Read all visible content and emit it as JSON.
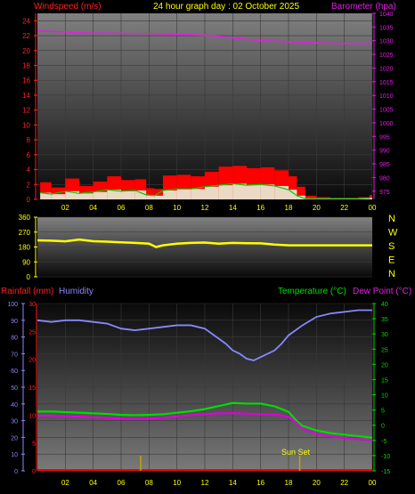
{
  "header": {
    "wind_label": "Windspeed (m/s)",
    "title": "24 hour graph day : 02 October 2025",
    "baro_label": "Barometer (hpa)"
  },
  "lower_labels": {
    "rain": "Rainfall (mm)",
    "humidity": "Humidity",
    "temp": "Temperature (°C)",
    "dew": "Dew Point (°C)"
  },
  "annotation": "Sun Set",
  "colors": {
    "wind": "#ff0000",
    "gust_green": "#00cc00",
    "gust_white": "#e6ffe6",
    "barometer": "#e020e0",
    "direction": "#ffff00",
    "humidity": "#8888ff",
    "temperature": "#00dd00",
    "dewpoint": "#dd00dd",
    "rain": "#ff0000",
    "sun_marker": "#c8a000"
  },
  "chart_data": [
    {
      "type": "area",
      "id": "wind_baro",
      "title": "24 hour graph day : 02 October 2025",
      "xlabel": "",
      "ylabel": "Windspeed (m/s)",
      "ylabel_right": "Barometer (hpa)",
      "x_ticks": [
        "02",
        "04",
        "06",
        "08",
        "10",
        "12",
        "14",
        "16",
        "18",
        "20",
        "22",
        "00"
      ],
      "x_range": [
        0,
        24
      ],
      "ylim": [
        0,
        25
      ],
      "y_ticks": [
        0,
        2,
        4,
        6,
        8,
        10,
        12,
        14,
        16,
        18,
        20,
        22,
        24
      ],
      "y2lim": [
        972,
        1040
      ],
      "y2_ticks": [
        975,
        980,
        985,
        990,
        995,
        1000,
        1005,
        1010,
        1015,
        1020,
        1025,
        1030,
        1035,
        1040
      ],
      "grid": true,
      "series": [
        {
          "name": "Windspeed (m/s)",
          "kind": "bars",
          "x": [
            0.2,
            1,
            2,
            3,
            4,
            5,
            6,
            7,
            7.8,
            8.4,
            9,
            10,
            11,
            12,
            13,
            14,
            15,
            16,
            17,
            18,
            18.6,
            19.2,
            20,
            21,
            22,
            23,
            23.8
          ],
          "values": [
            2.3,
            1.6,
            2.8,
            1.8,
            2.4,
            3.1,
            2.6,
            2.7,
            1.5,
            1.4,
            3.2,
            3.3,
            3.1,
            3.7,
            4.4,
            4.5,
            4.2,
            4.3,
            3.9,
            3.1,
            1.7,
            0.5,
            0.3,
            0.2,
            0.2,
            0.3,
            0.6
          ]
        },
        {
          "name": "Gust",
          "kind": "line",
          "x": [
            0.2,
            1,
            2,
            3,
            4,
            5,
            6,
            7,
            7.8,
            8.4,
            9,
            10,
            11,
            12,
            13,
            14,
            15,
            16,
            17,
            18,
            18.6,
            19.2,
            20,
            21,
            22,
            23,
            23.8
          ],
          "values": [
            0.9,
            0.7,
            1.1,
            0.8,
            1.0,
            1.3,
            1.1,
            1.2,
            0.6,
            0.5,
            1.2,
            1.4,
            1.4,
            1.7,
            1.9,
            2.1,
            1.9,
            2.0,
            1.8,
            1.3,
            0.5,
            0.1,
            0.1,
            0.1,
            0.1,
            0.1,
            0.2
          ]
        },
        {
          "name": "Barometer (hpa)",
          "kind": "line",
          "axis": "right",
          "x": [
            0,
            1,
            2,
            3,
            4,
            5,
            6,
            7,
            8,
            9,
            10,
            11,
            12,
            13,
            14,
            15,
            16,
            17,
            18,
            19,
            20,
            21,
            22,
            23,
            24
          ],
          "values": [
            1033.6,
            1033.4,
            1033.2,
            1032.9,
            1032.8,
            1032.8,
            1032.7,
            1032.6,
            1032.6,
            1032.5,
            1032.3,
            1032.2,
            1032.0,
            1031.6,
            1031.0,
            1030.5,
            1030.1,
            1029.8,
            1029.6,
            1029.4,
            1029.2,
            1029.1,
            1029.0,
            1029.0,
            1029.0
          ]
        }
      ]
    },
    {
      "type": "line",
      "id": "wind_direction",
      "title": "",
      "xlabel": "",
      "ylabel": "",
      "ylim": [
        0,
        360
      ],
      "y_ticks": [
        0,
        90,
        180,
        270,
        360
      ],
      "right_labels": [
        "N",
        "W",
        "S",
        "E",
        "N"
      ],
      "x_range": [
        0,
        24
      ],
      "grid": true,
      "series": [
        {
          "name": "",
          "x": [
            0,
            1,
            2,
            3,
            4,
            5,
            6,
            7,
            8,
            8.5,
            9,
            10,
            11,
            12,
            13,
            14,
            15,
            16,
            17,
            18,
            18.5,
            19,
            20,
            21,
            22,
            23,
            24
          ],
          "values": [
            220,
            218,
            214,
            225,
            215,
            212,
            208,
            205,
            200,
            180,
            190,
            200,
            205,
            207,
            200,
            205,
            203,
            202,
            195,
            190,
            190,
            190,
            190,
            190,
            190,
            190,
            190
          ]
        }
      ]
    },
    {
      "type": "line",
      "id": "temp_hum_rain",
      "title": "",
      "xlabel": "",
      "ylabel": "Humidity",
      "x_ticks": [
        "02",
        "04",
        "06",
        "08",
        "10",
        "12",
        "14",
        "16",
        "18",
        "20",
        "22",
        "00"
      ],
      "x_range": [
        0,
        24
      ],
      "ylim": [
        0,
        100
      ],
      "y_ticks": [
        0,
        10,
        20,
        30,
        40,
        50,
        60,
        70,
        80,
        90,
        100
      ],
      "rain_ticks": [
        0,
        5,
        10,
        15,
        20,
        25,
        30
      ],
      "rain_lim": [
        0,
        30
      ],
      "y2lim": [
        -15,
        40
      ],
      "y2_ticks": [
        -15,
        -10,
        -5,
        0,
        5,
        10,
        15,
        20,
        25,
        30,
        35,
        40
      ],
      "grid": true,
      "series": [
        {
          "name": "Humidity",
          "x": [
            0,
            1,
            2,
            3,
            4,
            5,
            6,
            7,
            8,
            9,
            10,
            11,
            12,
            12.5,
            13,
            13.5,
            14,
            14.5,
            15,
            15.5,
            16,
            16.5,
            17,
            17.5,
            18,
            19,
            20,
            21,
            22,
            23,
            24
          ],
          "values": [
            90,
            89,
            90,
            90,
            89,
            88,
            85,
            84,
            85,
            86,
            87,
            87,
            85,
            82,
            79,
            76,
            72,
            70,
            67,
            66,
            68,
            70,
            72,
            76,
            81,
            87,
            92,
            94,
            95,
            96,
            96
          ]
        },
        {
          "name": "Temperature (°C)",
          "axis": "right",
          "x": [
            0,
            1,
            2,
            3,
            4,
            5,
            6,
            7,
            8,
            9,
            10,
            11,
            12,
            13,
            14,
            15,
            16,
            17,
            18,
            18.5,
            19,
            20,
            21,
            22,
            23,
            24
          ],
          "values": [
            4.5,
            4.5,
            4.3,
            4.1,
            3.9,
            3.7,
            3.4,
            3.3,
            3.4,
            3.6,
            4.1,
            4.6,
            5.3,
            6.3,
            7.3,
            7.1,
            7.1,
            6.2,
            4.4,
            1.8,
            -0.2,
            -1.7,
            -2.6,
            -3.1,
            -3.6,
            -4.1
          ]
        },
        {
          "name": "Dew Point (°C)",
          "axis": "right",
          "x": [
            0,
            1,
            2,
            3,
            4,
            5,
            6,
            7,
            8,
            9,
            10,
            11,
            12,
            13,
            14,
            15,
            16,
            17,
            18,
            18.5,
            19,
            20,
            21,
            22,
            23,
            24
          ],
          "values": [
            3.2,
            3.1,
            3.0,
            2.8,
            2.6,
            2.4,
            2.2,
            2.0,
            2.2,
            2.4,
            2.9,
            3.3,
            3.6,
            3.9,
            4.0,
            3.8,
            3.6,
            3.5,
            2.8,
            1.1,
            -1.1,
            -2.8,
            -3.6,
            -4.2,
            -4.6,
            -4.9
          ]
        },
        {
          "name": "Rainfall (mm)",
          "axis": "rain",
          "x": [
            0,
            24
          ],
          "values": [
            0,
            0
          ]
        }
      ],
      "markers": [
        {
          "label": "",
          "x": 7.4
        },
        {
          "label": "Sun Set",
          "x": 18.8
        }
      ]
    }
  ]
}
